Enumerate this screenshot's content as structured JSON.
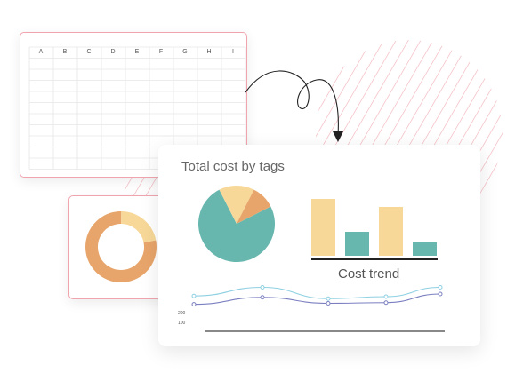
{
  "sheet": {
    "columns": [
      "A",
      "B",
      "C",
      "D",
      "E",
      "F",
      "G",
      "H",
      "I"
    ]
  },
  "main": {
    "title": "Total cost by tags",
    "trend_label": "Cost trend",
    "line_axis_labels": [
      "200",
      "100"
    ]
  },
  "colors": {
    "pink": "#f0a5ae",
    "teal": "#67b7af",
    "sand": "#f7d898",
    "orange": "#e8a56b",
    "light_blue": "#8ed0e2",
    "purple": "#7b7fc0"
  },
  "chart_data": [
    {
      "type": "pie",
      "slices": [
        {
          "value": 0.75,
          "color": "#67b7af"
        },
        {
          "value": 0.15,
          "color": "#f7d898"
        },
        {
          "value": 0.1,
          "color": "#e8a56b"
        }
      ]
    },
    {
      "type": "pie",
      "variant": "donut",
      "slices": [
        {
          "value": 0.78,
          "color": "#e8a56b"
        },
        {
          "value": 0.22,
          "color": "#f7d898"
        }
      ]
    },
    {
      "type": "bar",
      "xlabel": "Cost trend",
      "values": [
        64,
        27,
        55,
        15
      ],
      "colors": [
        "#f7d898",
        "#67b7af",
        "#f7d898",
        "#67b7af"
      ],
      "ylim": [
        0,
        70
      ]
    },
    {
      "type": "line",
      "series": [
        {
          "color": "#8ed0e2",
          "values": [
            206,
            232,
            198,
            204,
            232
          ]
        },
        {
          "color": "#7b7fc0",
          "values": [
            181,
            202,
            184,
            186,
            212
          ]
        }
      ],
      "ylim": [
        100,
        260
      ]
    }
  ]
}
